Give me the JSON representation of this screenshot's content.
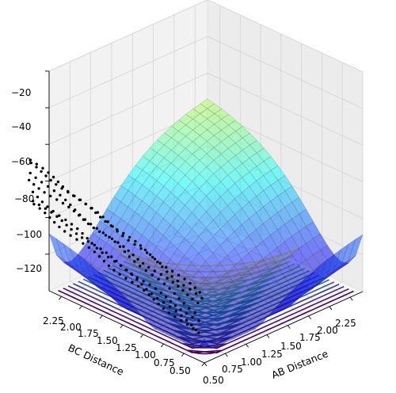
{
  "chart_data": {
    "type": "surface3d",
    "title": "",
    "xlabel": "AB Distance",
    "ylabel": "BC Distance",
    "zlabel": "",
    "xlim": [
      0.5,
      2.4
    ],
    "ylim": [
      0.5,
      2.4
    ],
    "zlim": [
      -140,
      -20
    ],
    "x_ticks": [
      "0.50",
      "0.75",
      "1.00",
      "1.25",
      "1.50",
      "1.75",
      "2.00",
      "2.25"
    ],
    "y_ticks": [
      "0.50",
      "0.75",
      "1.00",
      "1.25",
      "1.50",
      "1.75",
      "2.00",
      "2.25"
    ],
    "z_ticks": [
      "−120",
      "−100",
      "−80",
      "−60",
      "−40",
      "−20"
    ],
    "z_tick_values": [
      -120,
      -100,
      -80,
      -60,
      -40,
      -20
    ],
    "colormap": "jet",
    "contour_colormap": "viridis",
    "surface_alpha": 0.5,
    "trajectory_color": "#000000",
    "grid": true
  }
}
